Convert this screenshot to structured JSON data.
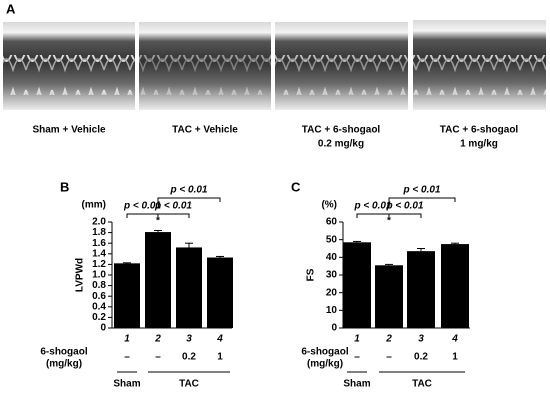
{
  "panel_a": {
    "label": "A",
    "captions": [
      [
        "Sham + Vehicle"
      ],
      [
        "TAC + Vehicle"
      ],
      [
        "TAC + 6-shogaol",
        "0.2 mg/kg"
      ],
      [
        "TAC + 6-shogaol",
        "1 mg/kg"
      ]
    ]
  },
  "chart_data": [
    {
      "type": "bar",
      "panel_label": "B",
      "y_unit": "(mm)",
      "y_label": "LVPWd",
      "categories": [
        "1",
        "2",
        "3",
        "4"
      ],
      "values": [
        1.22,
        1.81,
        1.52,
        1.33
      ],
      "errors": [
        0.01,
        0.03,
        0.08,
        0.02
      ],
      "color": "#000000",
      "ylim": [
        0,
        2
      ],
      "yticks": [
        0,
        0.2,
        0.4,
        0.6,
        0.8,
        {
          "value": 1,
          "label": "1.0"
        },
        1.2,
        1.4,
        1.6,
        1.8,
        {
          "value": 2,
          "label": "2.0"
        }
      ],
      "dose_label": [
        "6-shogaol",
        "(mg/kg)"
      ],
      "doses": [
        "–",
        "–",
        "0.2",
        "1"
      ],
      "groups": [
        "Sham",
        "TAC"
      ],
      "significance": [
        "p < 0.01",
        "p < 0.01",
        "p < 0.01"
      ],
      "marker": "*"
    },
    {
      "type": "bar",
      "panel_label": "C",
      "y_unit": "(%)",
      "y_label": "FS",
      "categories": [
        "1",
        "2",
        "3",
        "4"
      ],
      "values": [
        48.5,
        35.5,
        43.5,
        47.5
      ],
      "errors": [
        0.5,
        0.5,
        1.5,
        0.5
      ],
      "color": "#000000",
      "ylim": [
        0,
        60
      ],
      "yticks": [
        0,
        10,
        20,
        30,
        40,
        50,
        60
      ],
      "dose_label": [
        "6-shogaol",
        "(mg/kg)"
      ],
      "doses": [
        "–",
        "–",
        "0.2",
        "1"
      ],
      "groups": [
        "Sham",
        "TAC"
      ],
      "significance": [
        "p < 0.01",
        "p < 0.01",
        "p < 0.01"
      ],
      "marker": "*"
    }
  ]
}
